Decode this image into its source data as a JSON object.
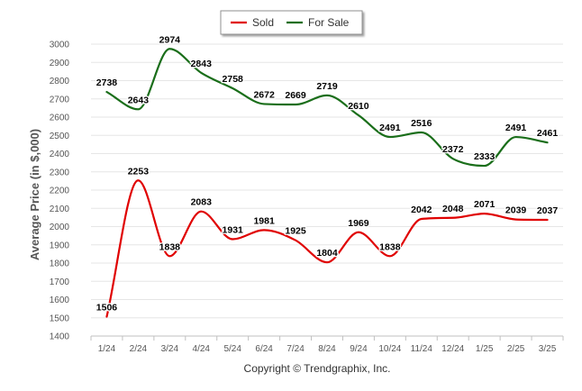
{
  "chart_data": {
    "type": "line",
    "categories": [
      "1/24",
      "2/24",
      "3/24",
      "4/24",
      "5/24",
      "6/24",
      "7/24",
      "8/24",
      "9/24",
      "10/24",
      "11/24",
      "12/24",
      "1/25",
      "2/25",
      "3/25"
    ],
    "series": [
      {
        "name": "Sold",
        "color": "#e00000",
        "values": [
          1506,
          2253,
          1838,
          2083,
          1931,
          1981,
          1925,
          1804,
          1969,
          1838,
          2042,
          2048,
          2071,
          2039,
          2037
        ]
      },
      {
        "name": "For Sale",
        "color": "#1a6e1a",
        "values": [
          2738,
          2643,
          2974,
          2843,
          2758,
          2672,
          2669,
          2719,
          2610,
          2491,
          2516,
          2372,
          2333,
          2491,
          2461
        ]
      }
    ],
    "title": "",
    "xlabel": "",
    "ylabel": "Average Price (in $,000)",
    "ylim": [
      1400,
      3000
    ],
    "yticks": [
      1400,
      1500,
      1600,
      1700,
      1800,
      1900,
      2000,
      2100,
      2200,
      2300,
      2400,
      2500,
      2600,
      2700,
      2800,
      2900,
      3000
    ],
    "grid": true,
    "legend_position": "top-center",
    "data_labels": true
  },
  "footer": {
    "copyright": "Copyright © Trendgraphix, Inc."
  }
}
